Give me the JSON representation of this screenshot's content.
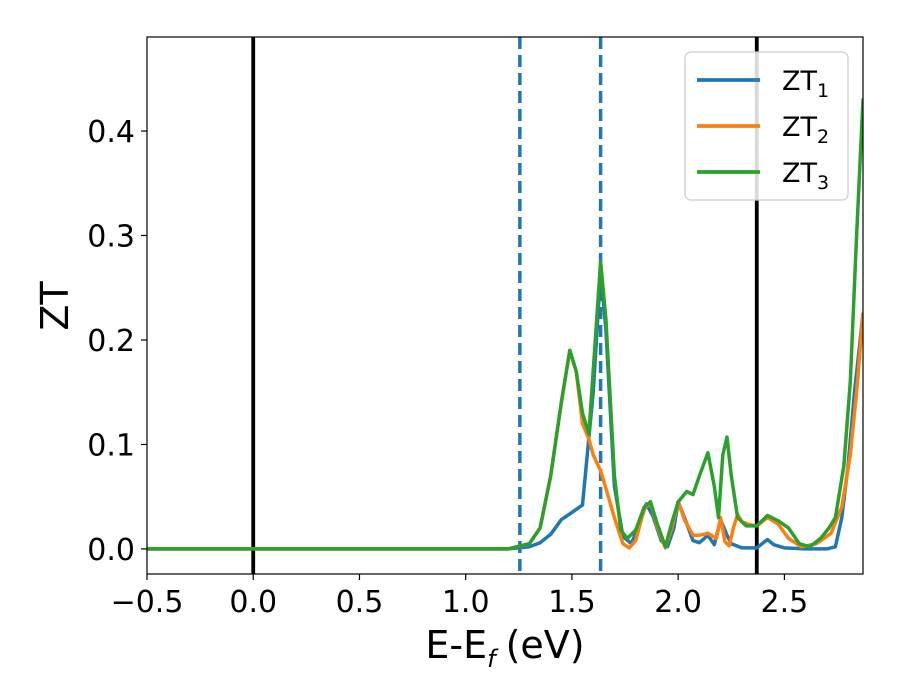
{
  "chart_data": {
    "type": "line",
    "xlabel": "E-E",
    "xlabel_subscript": "f",
    "xlabel_unit": "(eV)",
    "ylabel": "ZT",
    "xlim": [
      -0.5,
      2.87
    ],
    "ylim": [
      -0.024,
      0.49
    ],
    "grid": false,
    "legend_placement": "top-right",
    "xticks": [
      -0.5,
      0.0,
      0.5,
      1.0,
      1.5,
      2.0,
      2.5
    ],
    "xtick_labels": [
      "−0.5",
      "0.0",
      "0.5",
      "1.0",
      "1.5",
      "2.0",
      "2.5"
    ],
    "yticks": [
      0.0,
      0.1,
      0.2,
      0.3,
      0.4
    ],
    "ytick_labels": [
      "0.0",
      "0.1",
      "0.2",
      "0.3",
      "0.4"
    ],
    "vlines": [
      {
        "x": 0.0,
        "style": "solid",
        "color": "#000000"
      },
      {
        "x": 2.37,
        "style": "solid",
        "color": "#000000"
      },
      {
        "x": 1.255,
        "style": "dashed",
        "color": "#1f77b4"
      },
      {
        "x": 1.635,
        "style": "dashed",
        "color": "#1f77b4"
      }
    ],
    "series": [
      {
        "name": "ZT",
        "subscript": "1",
        "color": "#1f77b4",
        "points": [
          [
            -0.5,
            0
          ],
          [
            1.2,
            0
          ],
          [
            1.3,
            0.002
          ],
          [
            1.35,
            0.006
          ],
          [
            1.4,
            0.014
          ],
          [
            1.45,
            0.028
          ],
          [
            1.5,
            0.035
          ],
          [
            1.55,
            0.042
          ],
          [
            1.6,
            0.15
          ],
          [
            1.635,
            0.265
          ],
          [
            1.66,
            0.21
          ],
          [
            1.7,
            0.06
          ],
          [
            1.74,
            0.012
          ],
          [
            1.78,
            0.005
          ],
          [
            1.82,
            0.025
          ],
          [
            1.85,
            0.043
          ],
          [
            1.88,
            0.032
          ],
          [
            1.92,
            0.008
          ],
          [
            1.95,
            0.002
          ],
          [
            1.98,
            0.02
          ],
          [
            2.0,
            0.045
          ],
          [
            2.03,
            0.03
          ],
          [
            2.07,
            0.008
          ],
          [
            2.1,
            0.006
          ],
          [
            2.14,
            0.013
          ],
          [
            2.17,
            0.004
          ],
          [
            2.2,
            0.028
          ],
          [
            2.23,
            0.013
          ],
          [
            2.25,
            0.005
          ],
          [
            2.3,
            0.001
          ],
          [
            2.37,
            0.001
          ],
          [
            2.42,
            0.009
          ],
          [
            2.45,
            0.004
          ],
          [
            2.5,
            0.001
          ],
          [
            2.6,
            0.0
          ],
          [
            2.7,
            0.0
          ],
          [
            2.74,
            0.002
          ],
          [
            2.77,
            0.03
          ],
          [
            2.8,
            0.08
          ],
          [
            2.83,
            0.15
          ],
          [
            2.87,
            0.225
          ]
        ]
      },
      {
        "name": "ZT",
        "subscript": "2",
        "color": "#ff7f0e",
        "points": [
          [
            -0.5,
            0
          ],
          [
            1.2,
            0
          ],
          [
            1.3,
            0.005
          ],
          [
            1.35,
            0.02
          ],
          [
            1.4,
            0.07
          ],
          [
            1.45,
            0.14
          ],
          [
            1.49,
            0.19
          ],
          [
            1.52,
            0.17
          ],
          [
            1.55,
            0.12
          ],
          [
            1.58,
            0.105
          ],
          [
            1.6,
            0.09
          ],
          [
            1.635,
            0.075
          ],
          [
            1.66,
            0.058
          ],
          [
            1.7,
            0.03
          ],
          [
            1.74,
            0.005
          ],
          [
            1.77,
            0.001
          ],
          [
            1.8,
            0.008
          ],
          [
            1.84,
            0.038
          ],
          [
            1.87,
            0.045
          ],
          [
            1.9,
            0.022
          ],
          [
            1.94,
            0.001
          ],
          [
            1.97,
            0.02
          ],
          [
            2.0,
            0.045
          ],
          [
            2.03,
            0.028
          ],
          [
            2.07,
            0.013
          ],
          [
            2.1,
            0.013
          ],
          [
            2.14,
            0.015
          ],
          [
            2.18,
            0.01
          ],
          [
            2.2,
            0.03
          ],
          [
            2.22,
            0.007
          ],
          [
            2.24,
            0.003
          ],
          [
            2.26,
            0.02
          ],
          [
            2.28,
            0.033
          ],
          [
            2.3,
            0.026
          ],
          [
            2.34,
            0.023
          ],
          [
            2.37,
            0.022
          ],
          [
            2.42,
            0.03
          ],
          [
            2.47,
            0.024
          ],
          [
            2.52,
            0.01
          ],
          [
            2.58,
            0.002
          ],
          [
            2.65,
            0.005
          ],
          [
            2.72,
            0.015
          ],
          [
            2.77,
            0.04
          ],
          [
            2.81,
            0.09
          ],
          [
            2.84,
            0.15
          ],
          [
            2.87,
            0.225
          ]
        ]
      },
      {
        "name": "ZT",
        "subscript": "3",
        "color": "#2ca02c",
        "points": [
          [
            -0.5,
            0
          ],
          [
            1.2,
            0
          ],
          [
            1.3,
            0.005
          ],
          [
            1.35,
            0.02
          ],
          [
            1.4,
            0.07
          ],
          [
            1.45,
            0.14
          ],
          [
            1.49,
            0.19
          ],
          [
            1.52,
            0.17
          ],
          [
            1.55,
            0.13
          ],
          [
            1.58,
            0.11
          ],
          [
            1.61,
            0.2
          ],
          [
            1.635,
            0.275
          ],
          [
            1.66,
            0.22
          ],
          [
            1.7,
            0.07
          ],
          [
            1.73,
            0.018
          ],
          [
            1.76,
            0.01
          ],
          [
            1.8,
            0.018
          ],
          [
            1.84,
            0.04
          ],
          [
            1.87,
            0.045
          ],
          [
            1.9,
            0.025
          ],
          [
            1.94,
            0.002
          ],
          [
            1.97,
            0.025
          ],
          [
            2.0,
            0.045
          ],
          [
            2.04,
            0.055
          ],
          [
            2.07,
            0.052
          ],
          [
            2.1,
            0.07
          ],
          [
            2.14,
            0.092
          ],
          [
            2.17,
            0.06
          ],
          [
            2.19,
            0.03
          ],
          [
            2.21,
            0.09
          ],
          [
            2.23,
            0.107
          ],
          [
            2.25,
            0.07
          ],
          [
            2.28,
            0.03
          ],
          [
            2.32,
            0.022
          ],
          [
            2.37,
            0.022
          ],
          [
            2.42,
            0.032
          ],
          [
            2.47,
            0.027
          ],
          [
            2.52,
            0.02
          ],
          [
            2.57,
            0.005
          ],
          [
            2.62,
            0.002
          ],
          [
            2.67,
            0.01
          ],
          [
            2.71,
            0.02
          ],
          [
            2.74,
            0.03
          ],
          [
            2.78,
            0.08
          ],
          [
            2.81,
            0.16
          ],
          [
            2.84,
            0.3
          ],
          [
            2.87,
            0.43
          ]
        ]
      }
    ]
  }
}
